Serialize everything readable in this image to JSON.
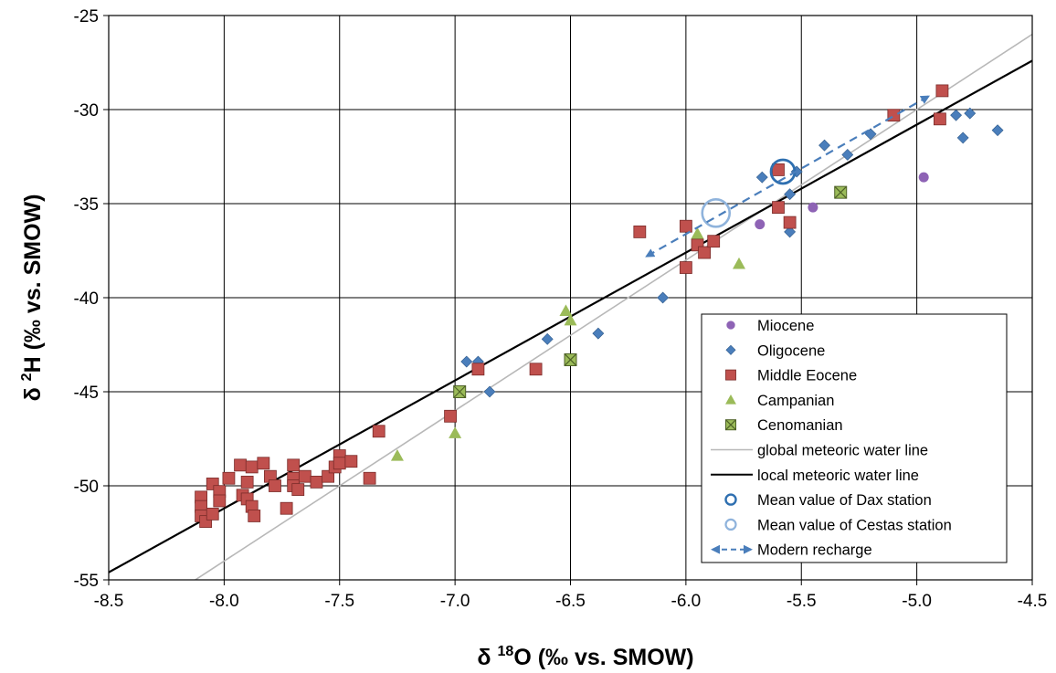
{
  "chart_data": {
    "type": "scatter",
    "xlabel": {
      "prefix": "δ ",
      "sup": "18",
      "suffix": "O (‰ vs. SMOW)"
    },
    "ylabel": {
      "prefix": "δ ",
      "sup": "2",
      "suffix": "H (‰ vs. SMOW)"
    },
    "xlim": [
      -8.5,
      -4.5
    ],
    "ylim": [
      -55,
      -25
    ],
    "x_ticks": [
      -8.5,
      -8.0,
      -7.5,
      -7.0,
      -6.5,
      -6.0,
      -5.5,
      -5.0,
      -4.5
    ],
    "x_tick_labels": [
      "-8.5",
      "-8.0",
      "-7.5",
      "-7.0",
      "-6.5",
      "-6.0",
      "-5.5",
      "-5.0",
      "-4.5"
    ],
    "y_ticks": [
      -55,
      -50,
      -45,
      -40,
      -35,
      -30,
      -25
    ],
    "y_tick_labels": [
      "-55",
      "-50",
      "-45",
      "-40",
      "-35",
      "-30",
      "-25"
    ],
    "grid": true,
    "legend_position": "bottom-right",
    "colors": {
      "miocene": "#8e63b5",
      "oligocene": "#4a7ebb",
      "middle_eocene": "#c0504d",
      "campanian": "#9bbb59",
      "cenomanian": "#77933c",
      "gmwl": "#b8b8b8",
      "lmwl": "#000000",
      "dax": "#2e6fb0",
      "cestas": "#8fb3dc",
      "recharge": "#4a7ebb"
    },
    "series": [
      {
        "name": "Miocene",
        "marker": "circle",
        "points": [
          [
            -5.68,
            -36.1
          ],
          [
            -5.45,
            -35.2
          ],
          [
            -4.97,
            -33.6
          ]
        ]
      },
      {
        "name": "Oligocene",
        "marker": "diamond",
        "points": [
          [
            -6.95,
            -43.4
          ],
          [
            -6.9,
            -43.4
          ],
          [
            -6.85,
            -45.0
          ],
          [
            -6.6,
            -42.2
          ],
          [
            -6.38,
            -41.9
          ],
          [
            -6.1,
            -40.0
          ],
          [
            -5.67,
            -33.6
          ],
          [
            -5.55,
            -34.5
          ],
          [
            -5.55,
            -36.5
          ],
          [
            -5.52,
            -33.3
          ],
          [
            -5.4,
            -31.9
          ],
          [
            -5.3,
            -32.4
          ],
          [
            -5.2,
            -31.3
          ],
          [
            -4.83,
            -30.3
          ],
          [
            -4.8,
            -31.5
          ],
          [
            -4.77,
            -30.2
          ],
          [
            -4.65,
            -31.1
          ]
        ]
      },
      {
        "name": "Middle Eocene",
        "marker": "square",
        "points": [
          [
            -8.1,
            -50.6
          ],
          [
            -8.1,
            -51.1
          ],
          [
            -8.1,
            -51.6
          ],
          [
            -8.08,
            -51.9
          ],
          [
            -8.05,
            -51.5
          ],
          [
            -8.05,
            -49.9
          ],
          [
            -8.02,
            -50.3
          ],
          [
            -8.02,
            -50.8
          ],
          [
            -7.98,
            -49.6
          ],
          [
            -7.93,
            -48.9
          ],
          [
            -7.92,
            -50.5
          ],
          [
            -7.9,
            -49.8
          ],
          [
            -7.9,
            -50.7
          ],
          [
            -7.88,
            -49.0
          ],
          [
            -7.88,
            -51.1
          ],
          [
            -7.87,
            -51.6
          ],
          [
            -7.83,
            -48.8
          ],
          [
            -7.8,
            -49.5
          ],
          [
            -7.78,
            -50.0
          ],
          [
            -7.73,
            -51.2
          ],
          [
            -7.7,
            -48.9
          ],
          [
            -7.7,
            -49.6
          ],
          [
            -7.7,
            -50.0
          ],
          [
            -7.68,
            -50.2
          ],
          [
            -7.65,
            -49.5
          ],
          [
            -7.6,
            -49.8
          ],
          [
            -7.55,
            -49.5
          ],
          [
            -7.52,
            -49.0
          ],
          [
            -7.5,
            -48.4
          ],
          [
            -7.5,
            -48.8
          ],
          [
            -7.45,
            -48.7
          ],
          [
            -7.37,
            -49.6
          ],
          [
            -7.33,
            -47.1
          ],
          [
            -7.02,
            -46.3
          ],
          [
            -6.9,
            -43.8
          ],
          [
            -6.65,
            -43.8
          ],
          [
            -6.2,
            -36.5
          ],
          [
            -6.0,
            -36.2
          ],
          [
            -6.0,
            -38.4
          ],
          [
            -5.95,
            -37.2
          ],
          [
            -5.92,
            -37.6
          ],
          [
            -5.88,
            -37.0
          ],
          [
            -5.6,
            -33.2
          ],
          [
            -5.6,
            -35.2
          ],
          [
            -5.55,
            -36.0
          ],
          [
            -5.1,
            -30.3
          ],
          [
            -4.9,
            -30.5
          ],
          [
            -4.89,
            -29.0
          ]
        ]
      },
      {
        "name": "Campanian",
        "marker": "triangle",
        "points": [
          [
            -7.25,
            -48.4
          ],
          [
            -7.0,
            -47.2
          ],
          [
            -6.52,
            -40.7
          ],
          [
            -6.5,
            -41.2
          ],
          [
            -5.95,
            -36.6
          ],
          [
            -5.77,
            -38.2
          ]
        ]
      },
      {
        "name": "Cenomanian",
        "marker": "xsquare",
        "points": [
          [
            -6.98,
            -45.0
          ],
          [
            -6.5,
            -43.3
          ],
          [
            -5.33,
            -34.4
          ]
        ]
      }
    ],
    "lines": [
      {
        "name": "global meteoric water line",
        "slope": 8,
        "intercept": 10
      },
      {
        "name": "local meteoric water line",
        "slope": 6.8,
        "intercept": 3.2
      }
    ],
    "stations": [
      {
        "name": "Mean value of Dax station",
        "x": -5.58,
        "y": -33.3
      },
      {
        "name": "Mean value of Cestas station",
        "x": -5.87,
        "y": -35.5
      }
    ],
    "recharge": {
      "name": "Modern recharge",
      "from": [
        -4.95,
        -29.3
      ],
      "to": [
        -6.17,
        -37.8
      ]
    }
  }
}
